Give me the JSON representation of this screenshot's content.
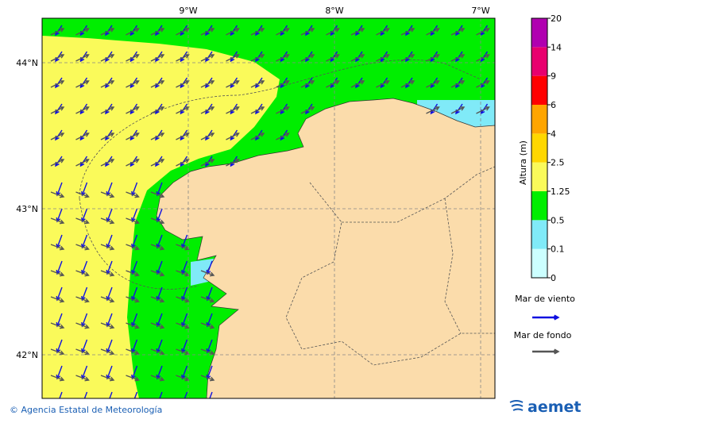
{
  "map": {
    "lon_labels": [
      "9°W",
      "8°W",
      "7°W"
    ],
    "lat_labels": [
      "44°N",
      "43°N",
      "42°N"
    ]
  },
  "colorbar": {
    "title": "Altura (m)",
    "labels": [
      "0",
      "0.1",
      "0.5",
      "1.25",
      "2.5",
      "4",
      "6",
      "9",
      "14",
      "20"
    ],
    "colors": [
      "#ccffff",
      "#80eaf8",
      "#00ee00",
      "#fafa5a",
      "#ffd700",
      "#ffa500",
      "#ff0000",
      "#e8006e",
      "#b000b0"
    ]
  },
  "legend": {
    "items": [
      {
        "label": "Mar de viento",
        "color": "#1010e0"
      },
      {
        "label": "Mar de fondo",
        "color": "#555555"
      }
    ]
  },
  "footer": {
    "credit": "© Agencia Estatal de Meteorología",
    "logo": "aemet"
  }
}
